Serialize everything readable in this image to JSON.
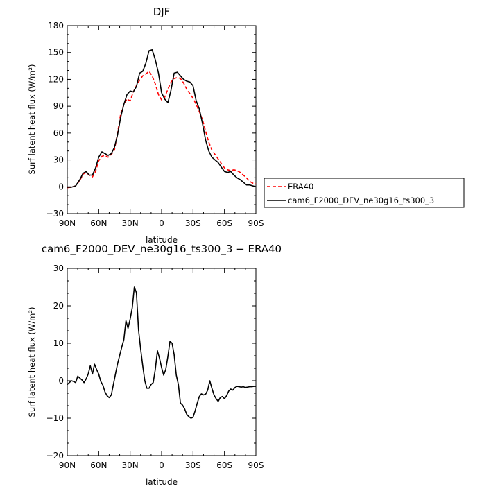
{
  "chart_data": [
    {
      "type": "line",
      "title": "DJF",
      "xlabel": "latitude",
      "ylabel": "Surf latent heat flux (W/m²)",
      "xlim": [
        90,
        -90
      ],
      "ylim": [
        -30,
        180
      ],
      "xticks": [
        90,
        60,
        30,
        0,
        -30,
        -60,
        -90
      ],
      "xticklabels": [
        "90N",
        "60N",
        "30N",
        "0",
        "30S",
        "60S",
        "90S"
      ],
      "yticks": [
        -30,
        0,
        30,
        60,
        90,
        120,
        150,
        180
      ],
      "yticklabels": [
        "−30",
        "0",
        "30",
        "60",
        "90",
        "120",
        "150",
        "180"
      ],
      "legend_position": "right",
      "series": [
        {
          "name": "ERA40",
          "color": "#ff0000",
          "style": "dashed",
          "x": [
            90,
            86,
            82,
            78,
            75,
            72,
            69,
            66,
            63,
            60,
            57,
            54,
            51,
            48,
            45,
            42,
            39,
            36,
            33,
            30,
            27,
            24,
            21,
            18,
            15,
            12,
            9,
            6,
            3,
            0,
            -3,
            -6,
            -9,
            -12,
            -15,
            -18,
            -21,
            -24,
            -27,
            -30,
            -33,
            -36,
            -39,
            -42,
            -45,
            -48,
            -51,
            -54,
            -57,
            -60,
            -63,
            -66,
            -69,
            -72,
            -75,
            -78,
            -81,
            -84,
            -87,
            -90
          ],
          "values": [
            -1,
            -0.5,
            1,
            7,
            14,
            16,
            13,
            11,
            17,
            29,
            34,
            35,
            33,
            36,
            41,
            60,
            82,
            92,
            98,
            96,
            106,
            113,
            119,
            124,
            126,
            129,
            124,
            115,
            103,
            97,
            100,
            109,
            117,
            121,
            122,
            121,
            116,
            109,
            104,
            99,
            92,
            84,
            75,
            62,
            50,
            41,
            36,
            31,
            26,
            21,
            19,
            18,
            19,
            18,
            16,
            13,
            10,
            6,
            4,
            3
          ]
        },
        {
          "name": "cam6_F2000_DEV_ne30g16_ts300_3",
          "color": "#000000",
          "style": "solid",
          "x": [
            90,
            86,
            82,
            78,
            75,
            72,
            69,
            66,
            63,
            60,
            57,
            54,
            51,
            48,
            45,
            42,
            39,
            36,
            33,
            30,
            27,
            24,
            21,
            18,
            15,
            12,
            9,
            6,
            3,
            0,
            -3,
            -6,
            -9,
            -12,
            -15,
            -18,
            -21,
            -24,
            -27,
            -30,
            -33,
            -36,
            -39,
            -42,
            -45,
            -48,
            -51,
            -54,
            -57,
            -60,
            -63,
            -66,
            -69,
            -72,
            -75,
            -78,
            -81,
            -84,
            -87,
            -90
          ],
          "values": [
            -0.5,
            -0.5,
            1,
            8,
            15,
            17,
            13,
            13,
            21,
            33,
            39,
            37,
            35,
            37,
            44,
            58,
            78,
            92,
            103,
            107,
            106,
            112,
            127,
            129,
            138,
            152,
            153,
            142,
            127,
            105,
            98,
            94,
            108,
            127,
            128,
            124,
            120,
            118,
            117,
            113,
            96,
            87,
            71,
            52,
            40,
            33,
            30,
            27,
            22,
            17,
            16,
            17,
            13,
            10,
            8,
            5,
            2,
            2,
            1,
            0
          ]
        }
      ]
    },
    {
      "type": "line",
      "title": "cam6_F2000_DEV_ne30g16_ts300_3 − ERA40",
      "xlabel": "latitude",
      "ylabel": "Surf latent heat flux (W/m²)",
      "xlim": [
        90,
        -90
      ],
      "ylim": [
        -20,
        30
      ],
      "xticks": [
        90,
        60,
        30,
        0,
        -30,
        -60,
        -90
      ],
      "xticklabels": [
        "90N",
        "60N",
        "30N",
        "0",
        "30S",
        "60S",
        "90S"
      ],
      "yticks": [
        -20,
        -10,
        0,
        10,
        20,
        30
      ],
      "yticklabels": [
        "−20",
        "−10",
        "0",
        "10",
        "20",
        "30"
      ],
      "series": [
        {
          "color": "#000000",
          "style": "solid",
          "x": [
            90,
            88,
            86,
            84,
            82,
            80,
            78,
            76,
            74,
            72,
            70,
            68,
            66,
            64,
            62,
            60,
            58,
            56,
            54,
            52,
            50,
            48,
            46,
            44,
            42,
            40,
            38,
            36,
            34,
            32,
            30,
            28,
            26,
            24,
            22,
            20,
            18,
            16,
            14,
            12,
            10,
            8,
            6,
            4,
            2,
            0,
            -2,
            -4,
            -6,
            -8,
            -10,
            -12,
            -14,
            -16,
            -18,
            -20,
            -22,
            -24,
            -26,
            -28,
            -30,
            -32,
            -34,
            -36,
            -38,
            -40,
            -42,
            -44,
            -46,
            -48,
            -50,
            -52,
            -54,
            -56,
            -58,
            -60,
            -62,
            -64,
            -66,
            -68,
            -70,
            -72,
            -74,
            -76,
            -78,
            -80,
            -82,
            -84,
            -86,
            -88,
            -90
          ],
          "values": [
            -1,
            -0.5,
            0,
            -0.2,
            -0.5,
            1.2,
            0.7,
            0.2,
            -0.5,
            0.5,
            1.8,
            4,
            1.8,
            4.4,
            3,
            1.8,
            -0.2,
            -1.2,
            -3,
            -4,
            -4.5,
            -3.8,
            -1,
            1.8,
            4.5,
            6.8,
            9,
            11,
            16,
            14,
            16.5,
            19.5,
            25,
            23.5,
            13.5,
            8.5,
            4,
            0,
            -2,
            -2,
            -1,
            -0.5,
            3,
            8,
            6,
            3.5,
            1.5,
            3,
            6.5,
            10.6,
            10,
            7,
            1.5,
            -1,
            -6,
            -6.5,
            -7.5,
            -9,
            -9.6,
            -10,
            -9.8,
            -8,
            -6,
            -4.2,
            -3.5,
            -3.8,
            -3.6,
            -2.5,
            0,
            -2,
            -3.8,
            -4.8,
            -5.5,
            -4.5,
            -4.2,
            -4.8,
            -4,
            -2.8,
            -2.2,
            -2.5,
            -1.8,
            -1.5,
            -1.6,
            -1.7,
            -1.6,
            -1.8,
            -1.7,
            -1.6,
            -1.6,
            -1.5,
            -1.5
          ]
        }
      ]
    }
  ]
}
